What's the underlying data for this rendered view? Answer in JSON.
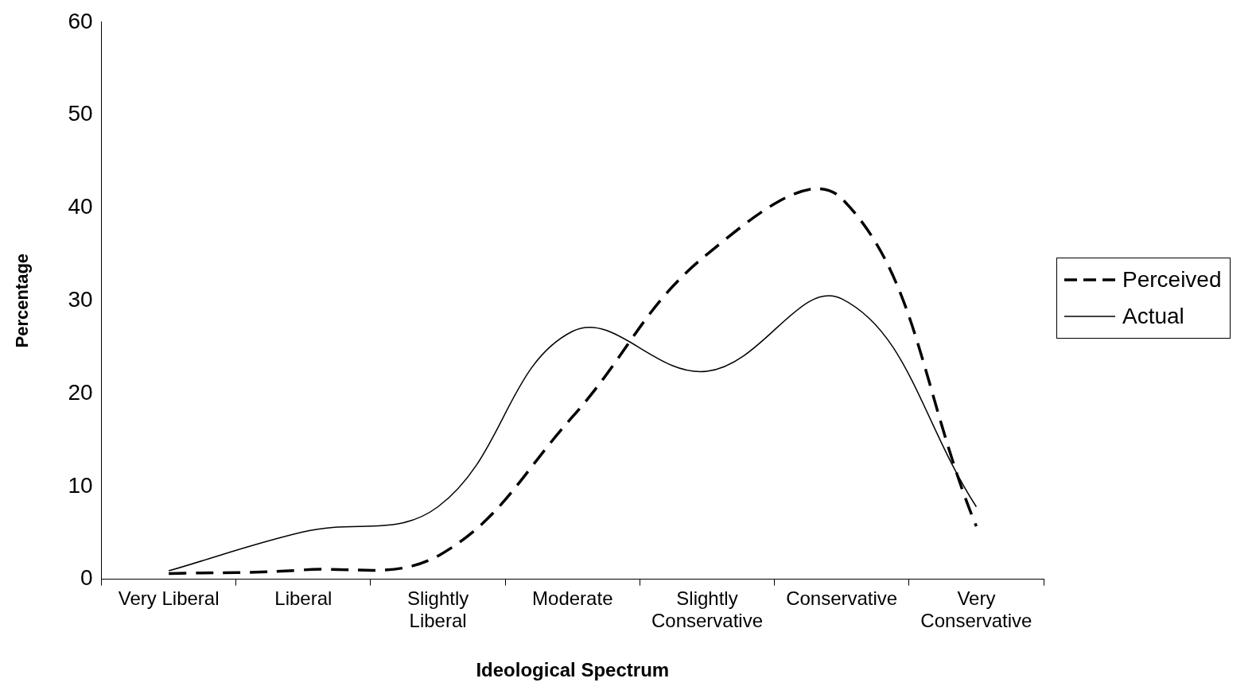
{
  "chart_data": {
    "type": "line",
    "xlabel": "Ideological Spectrum",
    "ylabel": "Percentage",
    "categories": [
      "Very Liberal",
      "Liberal",
      "Slightly Liberal",
      "Moderate",
      "Slightly Conservative",
      "Conservative",
      "Very Conservative"
    ],
    "series": [
      {
        "name": "Perceived",
        "color": "#000000",
        "line_style": "dashed",
        "values": [
          0.6,
          1.0,
          2.5,
          17.5,
          35,
          41,
          5.7
        ]
      },
      {
        "name": "Actual",
        "color": "#000000",
        "line_style": "solid",
        "values": [
          0.9,
          5.1,
          7.8,
          26.7,
          22.4,
          30.2,
          7.8
        ]
      }
    ],
    "ylim": [
      0,
      60
    ],
    "yticks": [
      0,
      10,
      20,
      30,
      40,
      50,
      60
    ],
    "grid": false,
    "legend": "right",
    "marker": "none"
  }
}
